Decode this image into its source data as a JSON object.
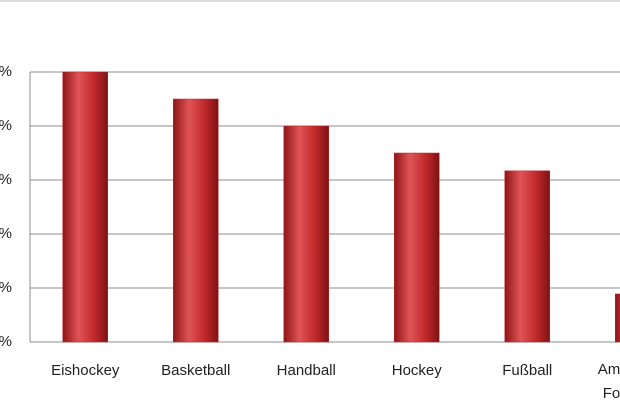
{
  "chart_data": {
    "type": "bar",
    "categories": [
      "Eishockey",
      "Basketball",
      "Handball",
      "Hockey",
      "Fußball",
      [
        "Am",
        "Fo"
      ]
    ],
    "values": [
      50,
      45,
      40,
      35,
      31.7,
      8.9
    ],
    "color": "#c0282b",
    "ylim": [
      0,
      50
    ],
    "yticks": [
      {
        "value": 0,
        "label": "%"
      },
      {
        "value": 10,
        "label": "%"
      },
      {
        "value": 20,
        "label": "%"
      },
      {
        "value": 30,
        "label": "%"
      },
      {
        "value": 40,
        "label": "%"
      },
      {
        "value": 50,
        "label": "%"
      }
    ],
    "grid": true
  }
}
